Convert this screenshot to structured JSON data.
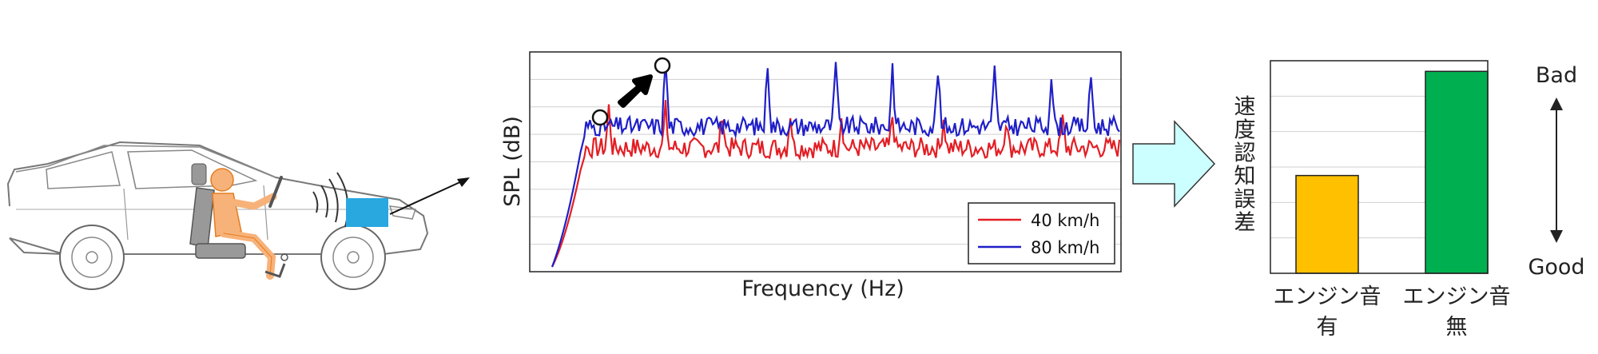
{
  "spectrum_chart": {
    "ylabel": "SPL (dB)",
    "xlabel": "Frequency (Hz)",
    "legend": [
      {
        "label": "40 km/h",
        "color": "#e31e24"
      },
      {
        "label": "80 km/h",
        "color": "#1f1fc8"
      }
    ]
  },
  "bar_chart": {
    "ylabel": "速度認知誤差",
    "scale_top": "Bad",
    "scale_bottom": "Good",
    "categories": [
      {
        "line1": "エンジン音",
        "line2": "有",
        "color": "#ffc000"
      },
      {
        "line1": "エンジン音",
        "line2": "無",
        "color": "#00b050"
      }
    ]
  },
  "chart_data": [
    {
      "type": "line",
      "title": "",
      "xlabel": "Frequency (Hz)",
      "ylabel": "SPL (dB)",
      "grid": true,
      "legend_position": "bottom-right",
      "series": [
        {
          "name": "40 km/h",
          "color": "#e31e24"
        },
        {
          "name": "80 km/h",
          "color": "#1f1fc8"
        }
      ]
    },
    {
      "type": "bar",
      "categories": [
        "エンジン音 有",
        "エンジン音 無"
      ],
      "values": [
        0.46,
        0.95
      ],
      "ylabel": "速度認知誤差",
      "ylim": [
        0,
        1
      ],
      "grid": true
    }
  ],
  "colors": {
    "engine_box": "#29a8e0",
    "flow_arrow": "#ccffff",
    "occupant": "#f7b27a"
  }
}
